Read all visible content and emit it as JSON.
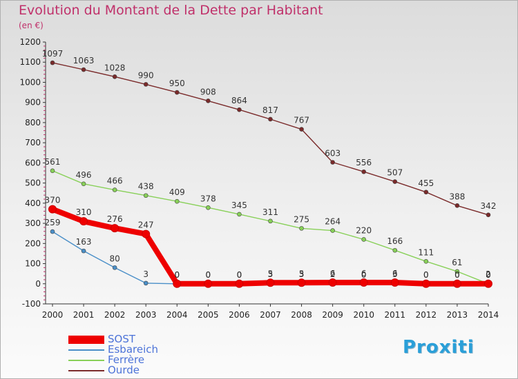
{
  "title": "Evolution du Montant de la Dette par Habitant",
  "subtitle": "(en €)",
  "logo": "Proxiti",
  "colors": {
    "title": "#c0306a",
    "axis": "#333333",
    "grid_tick": "#c0306a",
    "legend_text": "#4c73d8"
  },
  "chart_data": {
    "type": "line",
    "x": [
      "2000",
      "2001",
      "2002",
      "2003",
      "2004",
      "2005",
      "2006",
      "2007",
      "2008",
      "2009",
      "2010",
      "2011",
      "2012",
      "2013",
      "2014"
    ],
    "ylim": [
      -100,
      1200
    ],
    "yticks": [
      -100,
      0,
      100,
      200,
      300,
      400,
      500,
      600,
      700,
      800,
      900,
      1000,
      1100,
      1200
    ],
    "grid": false,
    "legend_position": "bottom-left",
    "series": [
      {
        "name": "SOST",
        "color": "#ee0000",
        "values": [
          370,
          310,
          276,
          247,
          0,
          0,
          0,
          5,
          5,
          6,
          6,
          6,
          0,
          0,
          0
        ],
        "labels": [
          "370",
          "310",
          "276",
          "247",
          "0",
          "0",
          "0",
          "5",
          "5",
          "6",
          "6",
          "6",
          "0",
          "0",
          "0"
        ]
      },
      {
        "name": "Esbareich",
        "color": "#4a8fc8",
        "values": [
          259,
          163,
          80,
          3,
          0,
          0,
          0,
          3,
          3,
          2,
          0,
          3,
          0,
          0,
          2
        ],
        "labels": [
          "259",
          "163",
          "80",
          "3",
          "0",
          "0",
          "0",
          "3",
          "3",
          "2",
          "0",
          "3",
          "0",
          "0",
          "2"
        ]
      },
      {
        "name": "Ferrère",
        "color": "#88d058",
        "values": [
          561,
          496,
          466,
          438,
          409,
          378,
          345,
          311,
          275,
          264,
          220,
          166,
          111,
          61,
          0
        ],
        "labels": [
          "561",
          "496",
          "466",
          "438",
          "409",
          "378",
          "345",
          "311",
          "275",
          "264",
          "220",
          "166",
          "111",
          "61",
          "0"
        ]
      },
      {
        "name": "Ourde",
        "color": "#7a2a2a",
        "values": [
          1097,
          1063,
          1028,
          990,
          950,
          908,
          864,
          817,
          767,
          603,
          556,
          507,
          455,
          388,
          342
        ],
        "labels": [
          "1097",
          "1063",
          "1028",
          "990",
          "950",
          "908",
          "864",
          "817",
          "767",
          "603",
          "556",
          "507",
          "455",
          "388",
          "342"
        ]
      }
    ]
  }
}
